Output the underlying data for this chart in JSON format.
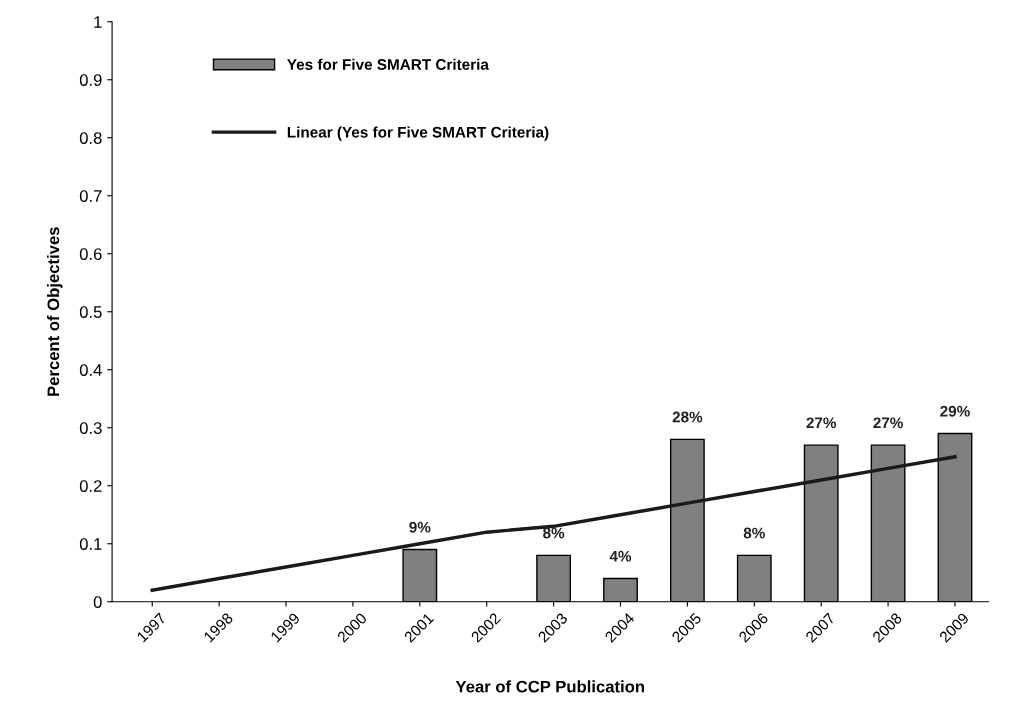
{
  "chart_data": {
    "type": "bar",
    "xlabel": "Year of CCP Publication",
    "ylabel": "Percent of Objectives",
    "categories": [
      "1997",
      "1998",
      "1999",
      "2000",
      "2001",
      "2002",
      "2003",
      "2004",
      "2005",
      "2006",
      "2007",
      "2008",
      "2009"
    ],
    "series": [
      {
        "name": "Yes for Five SMART Criteria",
        "color": "#808080",
        "values": [
          null,
          null,
          null,
          null,
          0.09,
          null,
          0.08,
          0.04,
          0.28,
          0.08,
          0.27,
          0.27,
          0.29
        ],
        "value_labels": [
          null,
          null,
          null,
          null,
          "9%",
          null,
          "8%",
          "4%",
          "28%",
          "8%",
          "27%",
          "27%",
          "29%"
        ]
      },
      {
        "name": "Linear (Yes for Five SMART Criteria)",
        "type": "line",
        "color": "#1a1a1a",
        "values": [
          0.02,
          0.04,
          0.06,
          0.08,
          0.1,
          0.12,
          0.13,
          0.15,
          0.17,
          0.19,
          0.21,
          0.23,
          0.25
        ]
      }
    ],
    "ylim": [
      0,
      1
    ],
    "yticks": [
      0,
      0.1,
      0.2,
      0.3,
      0.4,
      0.5,
      0.6,
      0.7,
      0.8,
      0.9,
      1
    ],
    "grid": false,
    "legend": "top left",
    "marker": "none",
    "line_style": "solid"
  }
}
